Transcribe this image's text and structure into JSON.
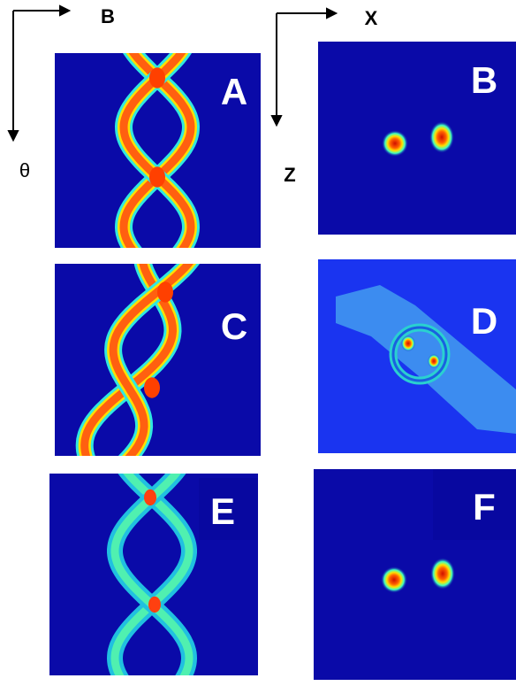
{
  "axes": {
    "left": {
      "horizontal": "B",
      "vertical": "θ"
    },
    "right": {
      "horizontal": "X",
      "vertical": "Z"
    }
  },
  "panels": [
    {
      "label": "A"
    },
    {
      "label": "B"
    },
    {
      "label": "C"
    },
    {
      "label": "D"
    },
    {
      "label": "E"
    },
    {
      "label": "F"
    }
  ]
}
